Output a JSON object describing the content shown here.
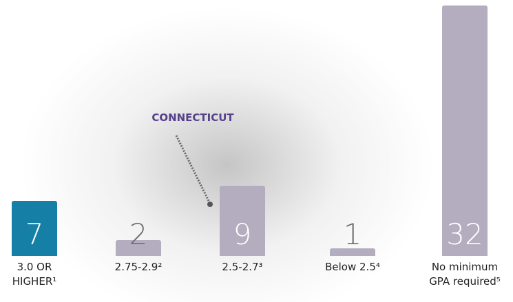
{
  "chart_data": {
    "type": "bar",
    "categories": [
      "3.0 OR HIGHER¹",
      "2.75-2.9²",
      "2.5-2.7³",
      "Below 2.5⁴",
      "No minimum GPA required⁵"
    ],
    "values": [
      7,
      2,
      9,
      1,
      32
    ],
    "colors": [
      "#167fa6",
      "#b4adbf",
      "#b4adbf",
      "#b4adbf",
      "#b4adbf"
    ],
    "annotation": "CONNECTICUT"
  }
}
